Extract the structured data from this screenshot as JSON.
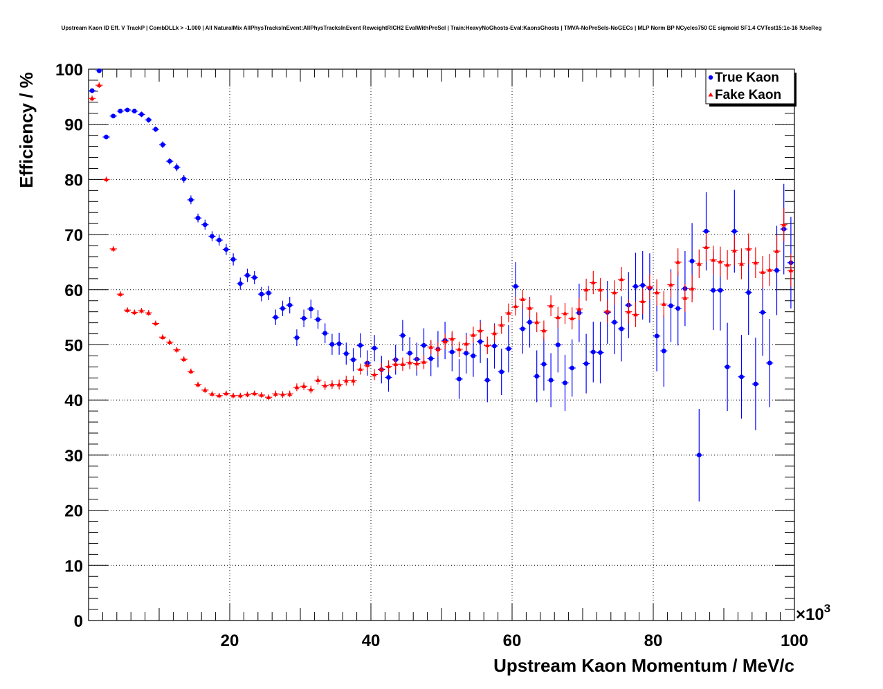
{
  "chart_data": {
    "type": "scatter",
    "title": "Upstream Kaon ID Eff. V TrackP | CombDLLk > -1.000 | All NaturalMix AllPhysTracksInEvent:AllPhysTracksInEvent ReweightRICH2 EvalWithPreSel | Train:HeavyNoGhosts-Eval:KaonsGhosts | TMVA-NoPreSels-NoGECs | MLP Norm BP NCycles750 CE sigmoid SF1.4 CVTest15:1e-16 !UseReg",
    "xlabel": "Upstream Kaon Momentum / MeV/c",
    "ylabel": "Efficiency / %",
    "x_multiplier_base": "×10",
    "x_multiplier_exp": "3",
    "xlim": [
      0,
      100
    ],
    "ylim": [
      0,
      100
    ],
    "x_ticks": [
      20,
      40,
      60,
      80,
      100
    ],
    "y_ticks": [
      0,
      10,
      20,
      30,
      40,
      50,
      60,
      70,
      80,
      90,
      100
    ],
    "grid": true,
    "legend_position": "top-right",
    "series": [
      {
        "name": "True Kaon",
        "color": "#0000ff",
        "marker": "circle",
        "x": [
          0.5,
          1.5,
          2.5,
          3.5,
          4.5,
          5.5,
          6.5,
          7.5,
          8.5,
          9.5,
          10.5,
          11.5,
          12.5,
          13.5,
          14.5,
          15.5,
          16.5,
          17.5,
          18.5,
          19.5,
          20.5,
          21.5,
          22.5,
          23.5,
          24.5,
          25.5,
          26.5,
          27.5,
          28.5,
          29.5,
          30.5,
          31.5,
          32.5,
          33.5,
          34.5,
          35.5,
          36.5,
          37.5,
          38.5,
          39.5,
          40.5,
          41.5,
          42.5,
          43.5,
          44.5,
          45.5,
          46.5,
          47.5,
          48.5,
          49.5,
          50.5,
          51.5,
          52.5,
          53.5,
          54.5,
          55.5,
          56.5,
          57.5,
          58.5,
          59.5,
          60.5,
          61.5,
          62.5,
          63.5,
          64.5,
          65.5,
          66.5,
          67.5,
          68.5,
          69.5,
          70.5,
          71.5,
          72.5,
          73.5,
          74.5,
          75.5,
          76.5,
          77.5,
          78.5,
          79.5,
          80.5,
          81.5,
          82.5,
          83.5,
          84.5,
          85.5,
          86.5,
          87.5,
          88.5,
          89.5,
          90.5,
          91.5,
          92.5,
          93.5,
          94.5,
          95.5,
          96.5,
          97.5,
          98.5,
          99.5
        ],
        "y": [
          96.1,
          99.7,
          87.7,
          91.5,
          92.4,
          92.6,
          92.4,
          91.8,
          90.8,
          89.1,
          86.3,
          83.3,
          82.2,
          80.1,
          76.3,
          73.0,
          71.8,
          69.7,
          69.0,
          67.3,
          65.5,
          61.1,
          62.6,
          62.2,
          59.2,
          59.4,
          55.0,
          56.6,
          57.2,
          51.3,
          54.8,
          56.5,
          54.6,
          52.1,
          50.1,
          50.2,
          48.4,
          47.3,
          49.9,
          46.7,
          49.4,
          45.5,
          44.1,
          47.3,
          51.7,
          48.5,
          47.4,
          49.9,
          47.5,
          49.2,
          50.8,
          48.7,
          43.8,
          48.5,
          48.0,
          50.6,
          43.6,
          49.8,
          45.1,
          49.3,
          60.6,
          52.9,
          54.1,
          44.3,
          46.5,
          43.6,
          50.0,
          43.1,
          45.8,
          55.8,
          46.6,
          48.7,
          48.6,
          55.9,
          54.1,
          52.9,
          57.2,
          60.6,
          60.8,
          60.3,
          51.6,
          48.9,
          57.1,
          56.6,
          60.2,
          65.2,
          30.0,
          70.6,
          59.9,
          59.9,
          46.0,
          70.6,
          44.2,
          59.5,
          42.9,
          55.9,
          46.7,
          63.5,
          71.0,
          64.9
        ],
        "err": [
          0.3,
          0.3,
          0.4,
          0.4,
          0.4,
          0.4,
          0.4,
          0.5,
          0.5,
          0.5,
          0.6,
          0.6,
          0.7,
          0.7,
          0.8,
          0.8,
          0.9,
          0.9,
          1.0,
          1.0,
          1.1,
          1.1,
          1.2,
          1.2,
          1.3,
          1.3,
          1.4,
          1.4,
          1.5,
          1.5,
          1.6,
          1.7,
          1.7,
          1.8,
          1.9,
          2.0,
          2.0,
          2.1,
          2.2,
          2.3,
          2.4,
          2.5,
          2.6,
          2.7,
          2.8,
          2.9,
          3.0,
          3.1,
          3.2,
          3.3,
          3.4,
          3.5,
          3.6,
          3.7,
          3.8,
          3.9,
          4.0,
          4.1,
          4.2,
          4.3,
          4.4,
          4.5,
          4.6,
          4.7,
          4.8,
          4.9,
          5.0,
          5.1,
          5.2,
          5.3,
          5.4,
          5.5,
          5.6,
          5.7,
          5.8,
          5.9,
          6.0,
          6.1,
          6.2,
          6.3,
          6.4,
          6.5,
          6.6,
          6.7,
          6.8,
          6.9,
          8.4,
          7.1,
          7.2,
          7.3,
          8.0,
          7.5,
          7.6,
          7.7,
          8.4,
          7.9,
          8.0,
          8.1,
          8.2,
          8.3
        ]
      },
      {
        "name": "Fake Kaon",
        "color": "#ff0000",
        "marker": "triangle",
        "x": [
          0.5,
          1.5,
          2.5,
          3.5,
          4.5,
          5.5,
          6.5,
          7.5,
          8.5,
          9.5,
          10.5,
          11.5,
          12.5,
          13.5,
          14.5,
          15.5,
          16.5,
          17.5,
          18.5,
          19.5,
          20.5,
          21.5,
          22.5,
          23.5,
          24.5,
          25.5,
          26.5,
          27.5,
          28.5,
          29.5,
          30.5,
          31.5,
          32.5,
          33.5,
          34.5,
          35.5,
          36.5,
          37.5,
          38.5,
          39.5,
          40.5,
          41.5,
          42.5,
          43.5,
          44.5,
          45.5,
          46.5,
          47.5,
          48.5,
          49.5,
          50.5,
          51.5,
          52.5,
          53.5,
          54.5,
          55.5,
          56.5,
          57.5,
          58.5,
          59.5,
          60.5,
          61.5,
          62.5,
          63.5,
          64.5,
          65.5,
          66.5,
          67.5,
          68.5,
          69.5,
          70.5,
          71.5,
          72.5,
          73.5,
          74.5,
          75.5,
          76.5,
          77.5,
          78.5,
          79.5,
          80.5,
          81.5,
          82.5,
          83.5,
          84.5,
          85.5,
          86.5,
          87.5,
          88.5,
          89.5,
          90.5,
          91.5,
          92.5,
          93.5,
          94.5,
          95.5,
          96.5,
          97.5,
          98.5,
          99.5
        ],
        "y": [
          94.7,
          97.1,
          80.0,
          67.4,
          59.2,
          56.3,
          55.9,
          56.2,
          55.8,
          53.9,
          51.4,
          50.5,
          49.1,
          47.4,
          45.2,
          42.8,
          41.8,
          41.1,
          40.8,
          41.2,
          40.8,
          40.8,
          41.0,
          41.2,
          40.9,
          40.5,
          41.1,
          41.0,
          41.1,
          42.3,
          42.5,
          41.9,
          43.6,
          42.6,
          42.8,
          42.8,
          43.5,
          43.5,
          45.6,
          46.3,
          44.6,
          45.6,
          46.1,
          46.5,
          46.5,
          46.8,
          46.6,
          46.9,
          49.6,
          49.2,
          50.6,
          51.1,
          49.2,
          50.2,
          51.8,
          52.6,
          49.9,
          52.1,
          53.6,
          55.8,
          57.0,
          58.3,
          56.7,
          54.1,
          52.6,
          57.1,
          55.0,
          55.7,
          54.8,
          56.5,
          60.0,
          61.3,
          60.0,
          56.1,
          59.5,
          61.9,
          56.0,
          55.5,
          57.9,
          60.5,
          59.5,
          57.4,
          60.9,
          65.0,
          58.5,
          60.2,
          64.7,
          67.7,
          65.4,
          65.1,
          64.5,
          67.1,
          64.7,
          67.4,
          64.9,
          63.2,
          63.6,
          67.0,
          71.8,
          63.5
        ],
        "err": [
          0.5,
          0.5,
          0.5,
          0.5,
          0.5,
          0.5,
          0.5,
          0.5,
          0.5,
          0.5,
          0.5,
          0.5,
          0.5,
          0.5,
          0.5,
          0.5,
          0.5,
          0.5,
          0.5,
          0.5,
          0.5,
          0.5,
          0.5,
          0.5,
          0.5,
          0.5,
          0.6,
          0.6,
          0.6,
          0.7,
          0.7,
          0.7,
          0.8,
          0.8,
          0.8,
          0.9,
          0.9,
          0.9,
          1.0,
          1.0,
          1.0,
          1.1,
          1.1,
          1.1,
          1.2,
          1.2,
          1.2,
          1.3,
          1.3,
          1.3,
          1.4,
          1.4,
          1.4,
          1.5,
          1.5,
          1.5,
          1.6,
          1.6,
          1.6,
          1.7,
          1.7,
          1.7,
          1.8,
          1.8,
          1.8,
          1.9,
          1.9,
          1.9,
          2.0,
          2.0,
          2.0,
          2.1,
          2.1,
          2.1,
          2.2,
          2.2,
          2.2,
          2.3,
          2.3,
          2.3,
          2.4,
          2.4,
          2.4,
          2.5,
          2.5,
          2.5,
          2.6,
          2.6,
          2.6,
          2.7,
          2.7,
          2.7,
          2.8,
          2.8,
          2.8,
          2.9,
          2.9,
          2.9,
          3.0,
          3.0
        ]
      }
    ]
  }
}
